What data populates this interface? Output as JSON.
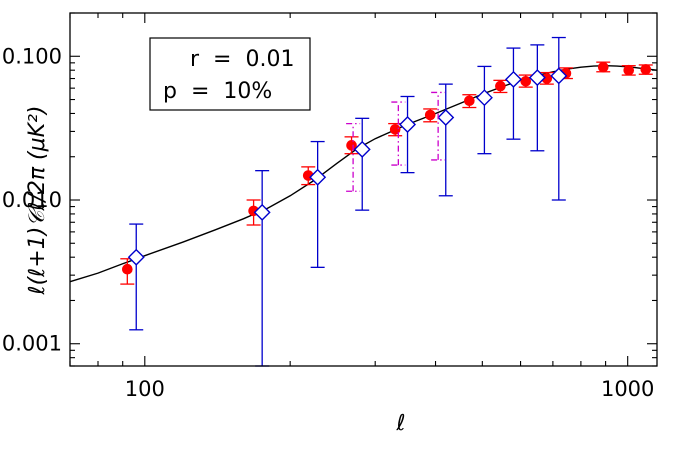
{
  "chart_data": {
    "type": "scatter",
    "title": "",
    "xlabel": "ℓ",
    "ylabel": "ℓ(ℓ+1)𝒞ℓ/2π  (μK²)",
    "xscale": "log",
    "yscale": "log",
    "xlim": [
      70,
      1150
    ],
    "ylim": [
      0.0007,
      0.2
    ],
    "x_ticks": [
      {
        "value": 100,
        "label": "100"
      },
      {
        "value": 1000,
        "label": "1000"
      }
    ],
    "y_ticks": [
      {
        "value": 0.001,
        "label": "0.001"
      },
      {
        "value": 0.01,
        "label": "0.010"
      },
      {
        "value": 0.1,
        "label": "0.100"
      }
    ],
    "legend": {
      "placement": "top-left",
      "lines": [
        "r  =  0.01",
        "p  =  10%"
      ]
    },
    "model_curve": {
      "color": "#000000",
      "x": [
        70,
        80,
        90,
        100,
        120,
        140,
        160,
        180,
        200,
        225,
        250,
        275,
        300,
        350,
        400,
        450,
        500,
        550,
        600,
        650,
        700,
        750,
        800,
        850,
        900,
        950,
        1000,
        1050,
        1100,
        1150
      ],
      "y": [
        0.0027,
        0.0031,
        0.0036,
        0.0041,
        0.0051,
        0.0062,
        0.0074,
        0.0088,
        0.0107,
        0.0138,
        0.018,
        0.0227,
        0.0267,
        0.0336,
        0.04,
        0.047,
        0.0545,
        0.0615,
        0.068,
        0.0735,
        0.078,
        0.0815,
        0.084,
        0.0855,
        0.086,
        0.0855,
        0.0845,
        0.083,
        0.0815,
        0.08
      ]
    },
    "series": [
      {
        "marker": "circle",
        "color": "#ff0000",
        "style": "solid",
        "x": [
          92,
          168,
          218,
          268,
          330,
          390,
          470,
          545,
          615,
          680,
          745,
          890,
          1005,
          1090
        ],
        "y": [
          0.0033,
          0.0084,
          0.0148,
          0.024,
          0.031,
          0.039,
          0.049,
          0.062,
          0.067,
          0.07,
          0.076,
          0.084,
          0.08,
          0.081
        ],
        "err_low": [
          0.0026,
          0.0067,
          0.0128,
          0.021,
          0.028,
          0.035,
          0.044,
          0.056,
          0.061,
          0.064,
          0.07,
          0.078,
          0.074,
          0.075
        ],
        "err_high": [
          0.0039,
          0.01,
          0.017,
          0.0275,
          0.034,
          0.043,
          0.054,
          0.068,
          0.074,
          0.077,
          0.083,
          0.091,
          0.086,
          0.087
        ]
      },
      {
        "marker": "diamond",
        "color": "#0000cc",
        "style": "solid",
        "x": [
          96,
          175,
          228,
          282,
          350,
          420,
          505,
          580,
          650,
          720
        ],
        "y": [
          0.004,
          0.0082,
          0.0144,
          0.0225,
          0.0335,
          0.0375,
          0.0515,
          0.069,
          0.071,
          0.073
        ],
        "err_low": [
          0.00125,
          0.0007,
          0.0034,
          0.0085,
          0.0155,
          0.0107,
          0.021,
          0.0265,
          0.022,
          0.01
        ],
        "err_high": [
          0.0068,
          0.016,
          0.0255,
          0.037,
          0.0525,
          0.064,
          0.085,
          0.114,
          0.12,
          0.135
        ]
      },
      {
        "marker": "none",
        "color": "#cc00cc",
        "style": "dash-dot",
        "x": [
          270,
          335,
          405
        ],
        "y": [
          0.0225,
          0.033,
          0.0375
        ],
        "err_low": [
          0.0115,
          0.0175,
          0.019
        ],
        "err_high": [
          0.034,
          0.048,
          0.056
        ]
      }
    ]
  }
}
